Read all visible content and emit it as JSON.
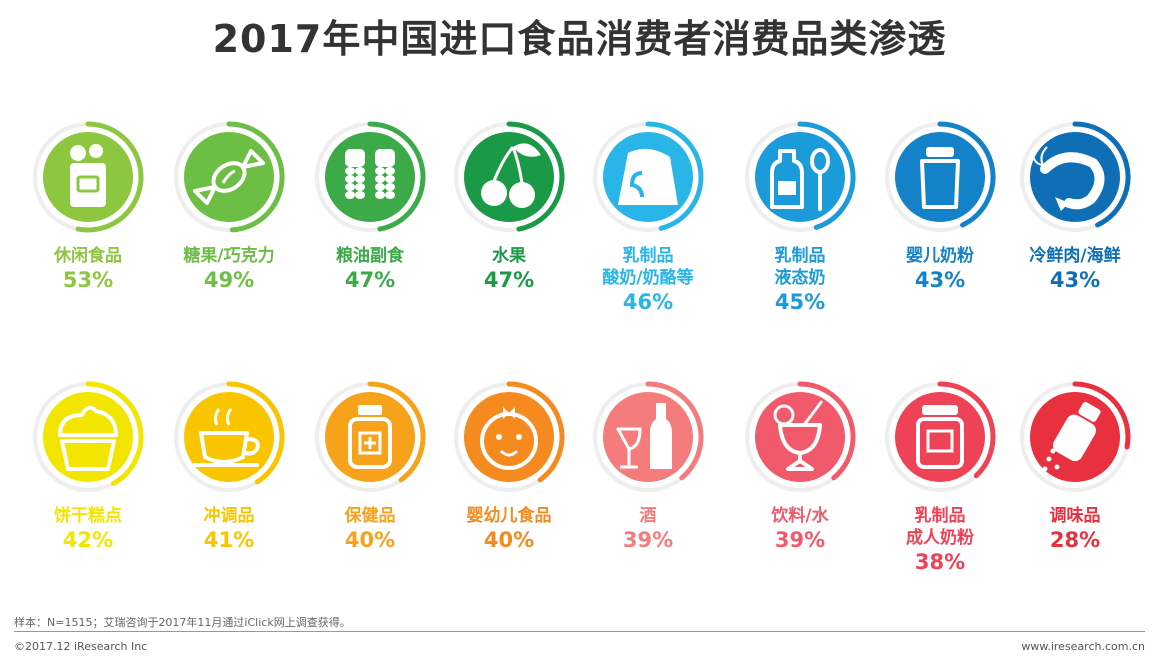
{
  "title": "2017年中国进口食品消费者消费品类渗透",
  "footer": {
    "note": "样本：N=1515；艾瑞咨询于2017年11月通过iClick网上调查获得。",
    "copyright": "©2017.12 iResearch Inc",
    "website": "www.iresearch.com.cn"
  },
  "chart_data": {
    "type": "bar",
    "title": "2017年中国进口食品消费者消费品类渗透",
    "unit": "%",
    "categories": [
      {
        "label": [
          "休闲食品"
        ],
        "value": 53,
        "color": "#8DC63F",
        "icon": "snack-bag-icon"
      },
      {
        "label": [
          "糖果/巧克力"
        ],
        "value": 49,
        "color": "#6CBE45",
        "icon": "candy-icon"
      },
      {
        "label": [
          "粮油副食"
        ],
        "value": 47,
        "color": "#3DAA49",
        "icon": "wheat-icon"
      },
      {
        "label": [
          "水果"
        ],
        "value": 47,
        "color": "#1A9A47",
        "icon": "cherry-icon"
      },
      {
        "label": [
          "乳制品",
          "酸奶/奶酪等"
        ],
        "value": 46,
        "color": "#29B5E8",
        "icon": "cheese-icon"
      },
      {
        "label": [
          "乳制品",
          "液态奶"
        ],
        "value": 45,
        "color": "#1B9BD7",
        "icon": "milk-bottle-icon"
      },
      {
        "label": [
          "婴儿奶粉"
        ],
        "value": 43,
        "color": "#1482C8",
        "icon": "formula-can-icon"
      },
      {
        "label": [
          "冷鲜肉/海鲜"
        ],
        "value": 43,
        "color": "#0E6FB6",
        "icon": "shrimp-icon"
      },
      {
        "label": [
          "饼干糕点"
        ],
        "value": 42,
        "color": "#F2E600",
        "icon": "cupcake-icon"
      },
      {
        "label": [
          "冲调品"
        ],
        "value": 41,
        "color": "#F9C400",
        "icon": "coffee-cup-icon"
      },
      {
        "label": [
          "保健品"
        ],
        "value": 40,
        "color": "#F7A21B",
        "icon": "supplement-jar-icon"
      },
      {
        "label": [
          "婴幼儿食品"
        ],
        "value": 40,
        "color": "#F58A1F",
        "icon": "baby-face-icon"
      },
      {
        "label": [
          "酒"
        ],
        "value": 39,
        "color": "#F47C7C",
        "icon": "wine-bottle-icon"
      },
      {
        "label": [
          "饮料/水"
        ],
        "value": 39,
        "color": "#F15A6A",
        "icon": "cocktail-icon"
      },
      {
        "label": [
          "乳制品",
          "成人奶粉"
        ],
        "value": 38,
        "color": "#EE4256",
        "icon": "milk-powder-can-icon"
      },
      {
        "label": [
          "调味品"
        ],
        "value": 28,
        "color": "#E8303F",
        "icon": "seasoning-shaker-icon"
      }
    ]
  }
}
